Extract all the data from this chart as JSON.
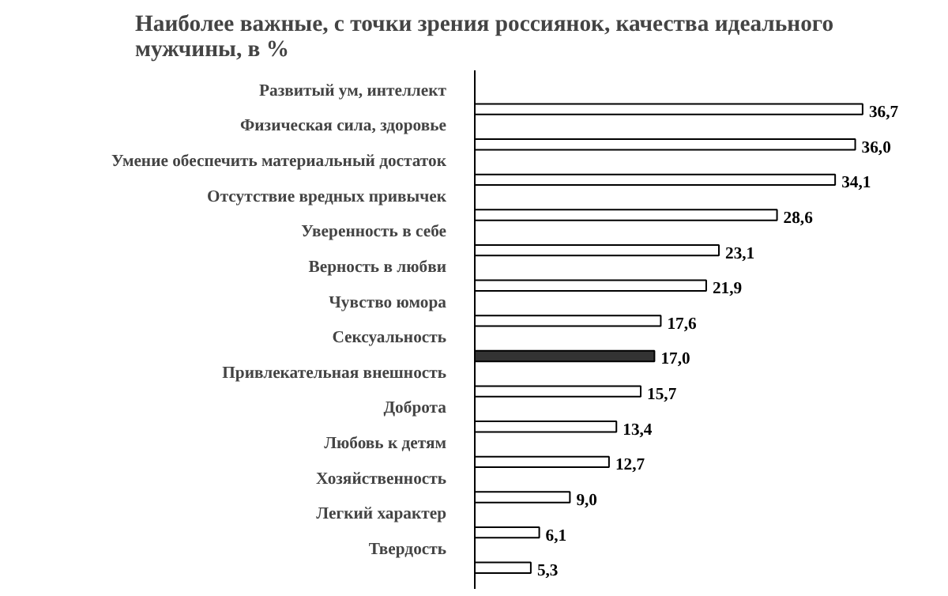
{
  "chart_data": {
    "type": "bar",
    "orientation": "horizontal",
    "title": "Наиболее важные, с точки зрения россиянок, качества идеального мужчины, в %",
    "categories": [
      "Развитый ум, интеллект",
      "Физическая сила, здоровье",
      "Умение обеспечить материальный достаток",
      "Отсутствие вредных привычек",
      "Уверенность в себе",
      "Верность в любви",
      "Чувство юмора",
      "Сексуальность",
      "Привлекательная внешность",
      "Доброта",
      "Любовь к детям",
      "Хозяйственность",
      "Легкий характер",
      "Твердость"
    ],
    "values": [
      36.7,
      36.0,
      34.1,
      28.6,
      23.1,
      21.9,
      17.6,
      17.0,
      15.7,
      13.4,
      12.7,
      9.0,
      6.1,
      5.3
    ],
    "value_labels": [
      "36,7",
      "36,0",
      "34,1",
      "28,6",
      "23,1",
      "21,9",
      "17,6",
      "17,0",
      "15,7",
      "13,4",
      "12,7",
      "9,0",
      "6,1",
      "5,3"
    ],
    "colors": [
      "#ffffff",
      "#ffffff",
      "#ffffff",
      "#ffffff",
      "#ffffff",
      "#ffffff",
      "#ffffff",
      "#333333",
      "#ffffff",
      "#ffffff",
      "#ffffff",
      "#ffffff",
      "#ffffff",
      "#ffffff"
    ],
    "grid": false
  }
}
